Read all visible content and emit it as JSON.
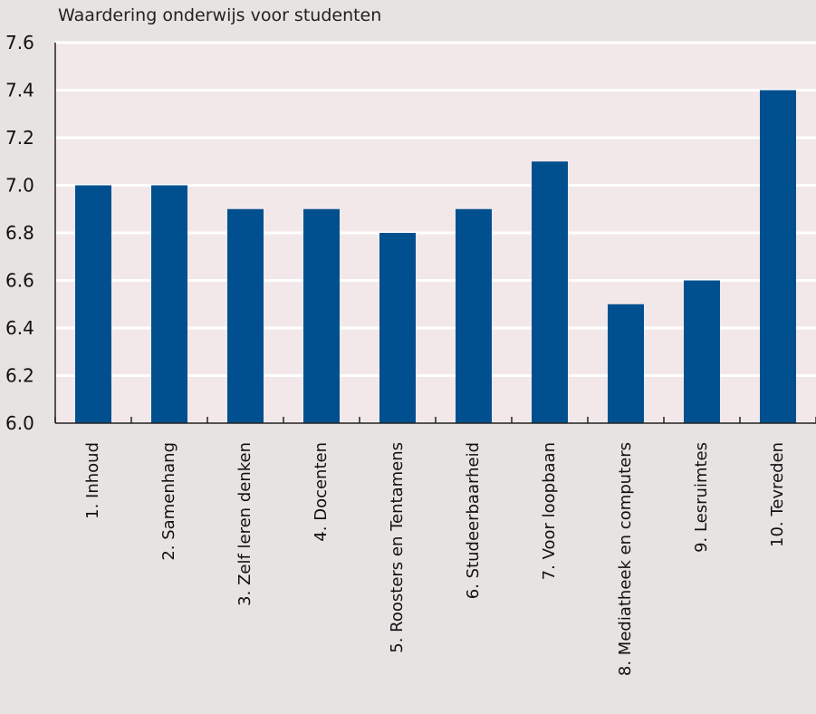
{
  "chart_data": {
    "type": "bar",
    "title": "Waardering onderwijs voor studenten",
    "categories": [
      "1. Inhoud",
      "2. Samenhang",
      "3. Zelf leren denken",
      "4. Docenten",
      "5. Roosters en Tentamens",
      "6. Studeerbaarheid",
      "7. Voor loopbaan",
      "8. Mediatheek en computers",
      "9. Lesruimtes",
      "10. Tevreden"
    ],
    "values": [
      7.0,
      7.0,
      6.9,
      6.9,
      6.8,
      6.9,
      7.1,
      6.5,
      6.6,
      7.4
    ],
    "ylim": [
      6.0,
      7.6
    ],
    "yticks": [
      "6.0",
      "6.2",
      "6.4",
      "6.6",
      "6.8",
      "7.0",
      "7.2",
      "7.4",
      "7.6"
    ],
    "grid": true,
    "colors": {
      "bar": "#00508f",
      "plot_background": "#f3e8e9",
      "page_background": "#e7e3e2",
      "gridline": "#ffffff"
    }
  }
}
